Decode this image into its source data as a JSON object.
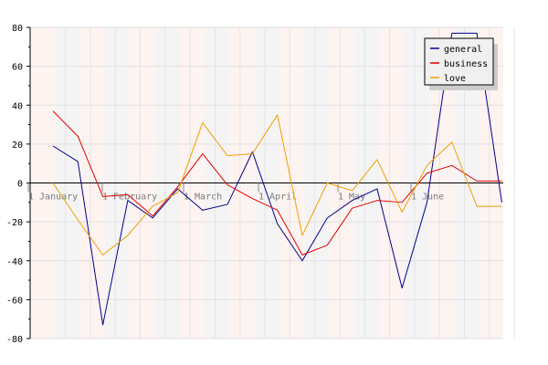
{
  "chart_data": {
    "type": "line",
    "title": "",
    "xlabel": "",
    "ylabel": "",
    "ylim": [
      -80,
      80
    ],
    "yticks": [
      80,
      60,
      40,
      20,
      0,
      -20,
      -40,
      -60,
      -80
    ],
    "month_labels": [
      "1 January",
      "1 February",
      "1 March",
      "1 April",
      "1 May",
      "1 June"
    ],
    "x_points": 19,
    "legend_position": "top-right",
    "grid": true,
    "series": [
      {
        "name": "general",
        "color": "#00008b",
        "values": [
          19,
          11,
          -73,
          -9,
          -18,
          -3,
          -14,
          -11,
          16,
          -21,
          -40,
          -18,
          -9,
          -3,
          -54,
          -10,
          77,
          77,
          -10
        ]
      },
      {
        "name": "business",
        "color": "#e00000",
        "values": [
          37,
          24,
          -7,
          -6,
          -17,
          -2,
          15,
          -1,
          -8,
          -14,
          -37,
          -32,
          -13,
          -9,
          -10,
          5,
          9,
          1,
          1
        ]
      },
      {
        "name": "love",
        "color": "#f0a000",
        "values": [
          0,
          -19,
          -37,
          -27,
          -12,
          -5,
          31,
          14,
          15,
          35,
          -27,
          0,
          -4,
          12,
          -15,
          9,
          21,
          -12,
          -12
        ]
      }
    ]
  }
}
